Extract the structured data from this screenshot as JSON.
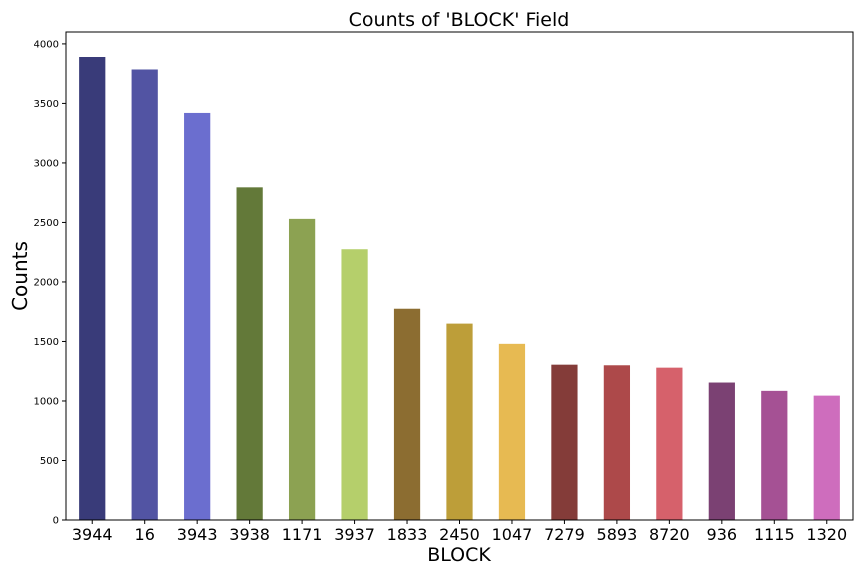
{
  "chart_data": {
    "type": "bar",
    "title": "Counts of 'BLOCK' Field",
    "xlabel": "BLOCK",
    "ylabel": "Counts",
    "categories": [
      "3944",
      "16",
      "3943",
      "3938",
      "1171",
      "3937",
      "1833",
      "2450",
      "1047",
      "7279",
      "5893",
      "8720",
      "936",
      "1115",
      "1320"
    ],
    "values": [
      3890,
      3785,
      3420,
      2795,
      2530,
      2275,
      1775,
      1650,
      1480,
      1305,
      1300,
      1280,
      1155,
      1085,
      1045
    ],
    "colors": [
      "#393b79",
      "#5254a3",
      "#6b6ecf",
      "#637939",
      "#8ca252",
      "#b5cf6b",
      "#8c6d31",
      "#bd9e39",
      "#e7ba52",
      "#843c39",
      "#ad494a",
      "#d6616b",
      "#7b4173",
      "#a55194",
      "#ce6dbd"
    ],
    "ylim": [
      0,
      4100
    ],
    "yticks": [
      0,
      500,
      1000,
      1500,
      2000,
      2500,
      3000,
      3500,
      4000
    ],
    "grid": false,
    "legend": "none"
  }
}
